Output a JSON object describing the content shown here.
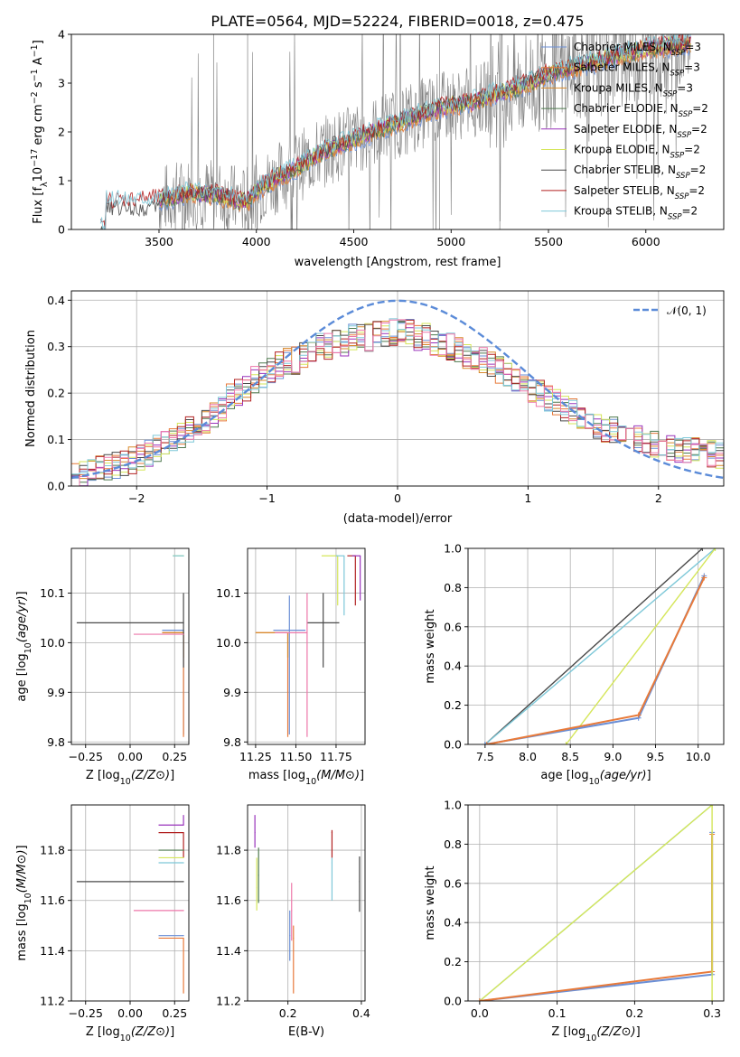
{
  "colors": {
    "Chabrier MILES": "#6b8fd6",
    "Salpeter MILES": "#e87a3a",
    "Kroupa MILES": "#d8892b",
    "Chabrier ELODIE": "#4f7a4f",
    "Salpeter ELODIE": "#9933bb",
    "Kroupa ELODIE": "#d5e65a",
    "Chabrier STELIB": "#4a4a4a",
    "Salpeter STELIB": "#b22222",
    "Kroupa STELIB": "#7ec8d8",
    "data": "#808080",
    "normal": "#5b8bd8",
    "pink": "#ee77aa"
  },
  "chart_data": [
    {
      "id": "spectrum",
      "type": "line",
      "title": "PLATE=0564, MJD=52224, FIBERID=0018, z=0.475",
      "xlabel": "wavelength [Angstrom, rest frame]",
      "ylabel": "Flux [f",
      "ylabel_parts": {
        "pre": "Flux [f",
        "sub1": "λ",
        "mid": "10",
        "sup1": "−17",
        "post": " erg cm",
        "sup2": "−2",
        "post2": " s",
        "sup3": "−1",
        "post3": " A",
        "sup4": "−1",
        "end": "]"
      },
      "xlim": [
        3050,
        6400
      ],
      "ylim": [
        0,
        4
      ],
      "xticks": [
        "3500",
        "4000",
        "4500",
        "5000",
        "5500",
        "6000"
      ],
      "xtick_values": [
        3500,
        4000,
        4500,
        5000,
        5500,
        6000
      ],
      "yticks": [
        "0",
        "1",
        "2",
        "3",
        "4"
      ],
      "ytick_values": [
        0,
        1,
        2,
        3,
        4
      ],
      "legend_position": "top-right",
      "legend": [
        {
          "name": "Chabrier MILES",
          "n": "3"
        },
        {
          "name": "Salpeter MILES",
          "n": "3"
        },
        {
          "name": "Kroupa MILES",
          "n": "3"
        },
        {
          "name": "Chabrier ELODIE",
          "n": "2"
        },
        {
          "name": "Salpeter ELODIE",
          "n": "2"
        },
        {
          "name": "Kroupa ELODIE",
          "n": "2"
        },
        {
          "name": "Chabrier STELIB",
          "n": "2"
        },
        {
          "name": "Salpeter STELIB",
          "n": "2"
        },
        {
          "name": "Kroupa STELIB",
          "n": "2"
        }
      ],
      "legend_sub": "SSP",
      "legend_prefix": ", N",
      "model_continuum": {
        "x": [
          3200,
          3230,
          3500,
          3650,
          3800,
          3950,
          4000,
          4100,
          4200,
          4300,
          4400,
          4500,
          4600,
          4700,
          4800,
          4900,
          5000,
          5100,
          5200,
          5300,
          5400,
          5500,
          5600,
          5700,
          5800,
          5900,
          6000,
          6100,
          6200,
          6250
        ],
        "y": [
          0.0,
          0.55,
          0.6,
          0.75,
          0.7,
          0.55,
          0.8,
          1.05,
          1.25,
          1.5,
          1.7,
          1.85,
          2.0,
          2.15,
          2.3,
          2.45,
          2.55,
          2.6,
          2.75,
          2.85,
          3.0,
          3.2,
          3.3,
          3.4,
          3.5,
          3.6,
          3.7,
          3.75,
          3.8,
          3.8
        ]
      }
    },
    {
      "id": "residuals",
      "type": "line",
      "xlabel": "(data-model)/error",
      "ylabel": "Normed distribution",
      "xlim": [
        -2.5,
        2.5
      ],
      "ylim": [
        0,
        0.42
      ],
      "xticks": [
        "−2",
        "−1",
        "0",
        "1",
        "2"
      ],
      "xtick_values": [
        -2,
        -1,
        0,
        1,
        2
      ],
      "yticks": [
        "0.0",
        "0.1",
        "0.2",
        "0.3",
        "0.4"
      ],
      "ytick_values": [
        0,
        0.1,
        0.2,
        0.3,
        0.4
      ],
      "legend": [
        {
          "name": "𝒩(0, 1)"
        }
      ],
      "legend_position": "top-right",
      "bin_width": 0.1,
      "hist_start": -2.5,
      "hist_mean": [
        0.02,
        0.025,
        0.03,
        0.035,
        0.04,
        0.045,
        0.05,
        0.055,
        0.06,
        0.07,
        0.08,
        0.09,
        0.1,
        0.11,
        0.12,
        0.13,
        0.14,
        0.15,
        0.17,
        0.19,
        0.2,
        0.21,
        0.23,
        0.24,
        0.25,
        0.26,
        0.27,
        0.27,
        0.28,
        0.29,
        0.3,
        0.3,
        0.31,
        0.31,
        0.32,
        0.32,
        0.32,
        0.33,
        0.33,
        0.33,
        0.33,
        0.33,
        0.32,
        0.32,
        0.31,
        0.3,
        0.3,
        0.29,
        0.28,
        0.27,
        0.27,
        0.26,
        0.25,
        0.24,
        0.23,
        0.22,
        0.21,
        0.2,
        0.19,
        0.18,
        0.17,
        0.16,
        0.15,
        0.14,
        0.13,
        0.12,
        0.12,
        0.11,
        0.11,
        0.1,
        0.1,
        0.09,
        0.09,
        0.085,
        0.08,
        0.08,
        0.075,
        0.07,
        0.07,
        0.065
      ]
    },
    {
      "id": "age-vs-Z",
      "type": "scatter",
      "xlabel": "Z [log10(Z/Z⊙)]",
      "ylabel": "age  [log10(age/yr)]",
      "xlim": [
        -0.33,
        0.33
      ],
      "ylim": [
        9.795,
        10.19
      ],
      "xticks": [
        "−0.25",
        "0.00",
        "0.25"
      ],
      "xtick_values": [
        -0.25,
        0,
        0.25
      ],
      "yticks": [
        "9.8",
        "9.9",
        "10.0",
        "10.1"
      ],
      "ytick_values": [
        9.8,
        9.9,
        10.0,
        10.1
      ],
      "points": [
        {
          "model": "Chabrier MILES",
          "x": 0.3,
          "y": 10.025,
          "xerr": [
            0.12,
            0
          ],
          "yerr": [
            0.21,
            0
          ]
        },
        {
          "model": "Salpeter MILES",
          "x": 0.3,
          "y": 10.02,
          "xerr": [
            0.12,
            0
          ],
          "yerr": [
            0.21,
            0
          ]
        },
        {
          "model": "Kroupa MILES",
          "x": 0.3,
          "y": 10.02,
          "xerr": [
            0.12,
            0
          ],
          "yerr": [
            0.05,
            0
          ]
        },
        {
          "model": "Chabrier STELIB",
          "x": 0.3,
          "y": 10.04,
          "xerr": [
            0.6,
            0
          ],
          "yerr": [
            0.09,
            0.06
          ]
        },
        {
          "model": "Kroupa ELODIE",
          "x": 0.3,
          "y": 10.175,
          "xerr": [
            0.06,
            0
          ],
          "yerr": [
            0,
            0
          ]
        },
        {
          "model": "Kroupa STELIB",
          "x": 0.3,
          "y": 10.175,
          "xerr": [
            0.06,
            0
          ],
          "yerr": [
            0,
            0
          ]
        },
        {
          "model": "pink",
          "x": 0.3,
          "y": 10.017,
          "xerr": [
            0.28,
            0
          ],
          "yerr": [
            0,
            0
          ]
        }
      ]
    },
    {
      "id": "age-vs-mass",
      "type": "scatter",
      "xlabel": "mass [log10(M/M⊙)]",
      "ylabel": "",
      "xlim": [
        11.2,
        11.93
      ],
      "ylim": [
        9.795,
        10.19
      ],
      "xticks": [
        "11.25",
        "11.50",
        "11.75"
      ],
      "xtick_values": [
        11.25,
        11.5,
        11.75
      ],
      "yticks": [
        "9.8",
        "9.9",
        "10.0",
        "10.1"
      ],
      "ytick_values": [
        9.8,
        9.9,
        10.0,
        10.1
      ],
      "points": [
        {
          "model": "Chabrier MILES",
          "x": 11.46,
          "y": 10.025,
          "xerr": [
            0.1,
            0.1
          ],
          "yerr": [
            0.21,
            0.07
          ]
        },
        {
          "model": "Salpeter MILES",
          "x": 11.45,
          "y": 10.02,
          "xerr": [
            0.2,
            0
          ],
          "yerr": [
            0.21,
            0
          ]
        },
        {
          "model": "Kroupa MILES",
          "x": 11.45,
          "y": 10.02,
          "xerr": [
            0.2,
            0
          ],
          "yerr": [
            0.05,
            0
          ]
        },
        {
          "model": "Chabrier STELIB",
          "x": 11.67,
          "y": 10.04,
          "xerr": [
            0.1,
            0.1
          ],
          "yerr": [
            0.09,
            0.06
          ]
        },
        {
          "model": "pink",
          "x": 11.57,
          "y": 10.02,
          "xerr": [
            0.2,
            0
          ],
          "yerr": [
            0.21,
            0.08
          ]
        },
        {
          "model": "Kroupa ELODIE",
          "x": 11.76,
          "y": 10.175,
          "xerr": [
            0.1,
            0
          ],
          "yerr": [
            0.1,
            0
          ]
        },
        {
          "model": "Salpeter STELIB",
          "x": 11.87,
          "y": 10.175,
          "xerr": [
            0.05,
            0
          ],
          "yerr": [
            0.1,
            0
          ]
        },
        {
          "model": "Salpeter ELODIE",
          "x": 11.9,
          "y": 10.175,
          "xerr": [
            0.05,
            0
          ],
          "yerr": [
            0.09,
            0
          ]
        },
        {
          "model": "Kroupa STELIB",
          "x": 11.8,
          "y": 10.175,
          "xerr": [
            0.05,
            0
          ],
          "yerr": [
            0.12,
            0
          ]
        }
      ]
    },
    {
      "id": "weight-vs-age",
      "type": "line",
      "xlabel": "age  [log10(age/yr)]",
      "ylabel": "mass weight",
      "xlim": [
        7.3,
        10.3
      ],
      "ylim": [
        0,
        1
      ],
      "xticks": [
        "7.5",
        "8.0",
        "8.5",
        "9.0",
        "9.5",
        "10.0"
      ],
      "xtick_values": [
        7.5,
        8.0,
        8.5,
        9.0,
        9.5,
        10.0
      ],
      "yticks": [
        "0.0",
        "0.2",
        "0.4",
        "0.6",
        "0.8",
        "1.0"
      ],
      "ytick_values": [
        0,
        0.2,
        0.4,
        0.6,
        0.8,
        1.0
      ],
      "series": [
        {
          "model": "Chabrier STELIB",
          "x": [
            7.5,
            10.05
          ],
          "y": [
            0,
            1.0
          ]
        },
        {
          "model": "Kroupa STELIB",
          "x": [
            7.5,
            10.2
          ],
          "y": [
            0,
            1.0
          ]
        },
        {
          "model": "Kroupa ELODIE",
          "x": [
            8.45,
            10.2
          ],
          "y": [
            0,
            1.0
          ]
        },
        {
          "model": "Chabrier MILES",
          "x": [
            7.5,
            9.3,
            10.07
          ],
          "y": [
            0,
            0.135,
            0.86
          ]
        },
        {
          "model": "Salpeter MILES",
          "x": [
            7.52,
            9.3,
            10.07
          ],
          "y": [
            0,
            0.15,
            0.85
          ]
        }
      ]
    },
    {
      "id": "mass-vs-Z",
      "type": "scatter",
      "xlabel": "Z [log10(Z/Z⊙)]",
      "ylabel": "mass [log10(M/M⊙)]",
      "xlim": [
        -0.33,
        0.33
      ],
      "ylim": [
        11.2,
        11.98
      ],
      "xticks": [
        "−0.25",
        "0.00",
        "0.25"
      ],
      "xtick_values": [
        -0.25,
        0,
        0.25
      ],
      "yticks": [
        "11.2",
        "11.4",
        "11.6",
        "11.8"
      ],
      "ytick_values": [
        11.2,
        11.4,
        11.6,
        11.8
      ],
      "points": [
        {
          "model": "Salpeter ELODIE",
          "x": 0.3,
          "y": 11.9,
          "xerr": [
            0.14,
            0
          ],
          "yerr": [
            0,
            0.04
          ]
        },
        {
          "model": "Salpeter STELIB",
          "x": 0.3,
          "y": 11.87,
          "xerr": [
            0.14,
            0
          ],
          "yerr": [
            0.1,
            0
          ]
        },
        {
          "model": "Chabrier ELODIE",
          "x": 0.3,
          "y": 11.8,
          "xerr": [
            0.14,
            0
          ],
          "yerr": [
            0,
            0
          ]
        },
        {
          "model": "Kroupa ELODIE",
          "x": 0.3,
          "y": 11.77,
          "xerr": [
            0.14,
            0
          ],
          "yerr": [
            0,
            0
          ]
        },
        {
          "model": "Kroupa STELIB",
          "x": 0.3,
          "y": 11.75,
          "xerr": [
            0.14,
            0
          ],
          "yerr": [
            0,
            0
          ]
        },
        {
          "model": "Chabrier STELIB",
          "x": 0.3,
          "y": 11.675,
          "xerr": [
            0.6,
            0
          ],
          "yerr": [
            0,
            0
          ]
        },
        {
          "model": "pink",
          "x": 0.3,
          "y": 11.56,
          "xerr": [
            0.28,
            0
          ],
          "yerr": [
            0,
            0
          ]
        },
        {
          "model": "Chabrier MILES",
          "x": 0.3,
          "y": 11.46,
          "xerr": [
            0.14,
            0
          ],
          "yerr": [
            0,
            0
          ]
        },
        {
          "model": "Salpeter MILES",
          "x": 0.3,
          "y": 11.45,
          "xerr": [
            0.14,
            0
          ],
          "yerr": [
            0.22,
            0
          ]
        }
      ]
    },
    {
      "id": "mass-vs-ebv",
      "type": "scatter",
      "xlabel": "E(B-V)",
      "ylabel": "",
      "xlim": [
        0.09,
        0.41
      ],
      "ylim": [
        11.2,
        11.98
      ],
      "xticks": [
        "0.2",
        "0.4"
      ],
      "xtick_values": [
        0.2,
        0.4
      ],
      "yticks": [
        "11.2",
        "11.4",
        "11.6",
        "11.8"
      ],
      "ytick_values": [
        11.2,
        11.4,
        11.6,
        11.8
      ],
      "points": [
        {
          "model": "Salpeter ELODIE",
          "x": 0.11,
          "y": 11.87,
          "yerr": [
            0.06,
            0.07
          ]
        },
        {
          "model": "Kroupa ELODIE",
          "x": 0.115,
          "y": 11.65,
          "yerr": [
            0.09,
            0.12
          ]
        },
        {
          "model": "Chabrier ELODIE",
          "x": 0.12,
          "y": 11.7,
          "yerr": [
            0.11,
            0.11
          ]
        },
        {
          "model": "Chabrier MILES",
          "x": 0.205,
          "y": 11.46,
          "yerr": [
            0.1,
            0.1
          ]
        },
        {
          "model": "pink",
          "x": 0.21,
          "y": 11.56,
          "yerr": [
            0.12,
            0.11
          ]
        },
        {
          "model": "Salpeter MILES",
          "x": 0.215,
          "y": 11.45,
          "yerr": [
            0.22,
            0.05
          ]
        },
        {
          "model": "Salpeter STELIB",
          "x": 0.32,
          "y": 11.87,
          "yerr": [
            0.1,
            0.01
          ]
        },
        {
          "model": "Kroupa STELIB",
          "x": 0.32,
          "y": 11.75,
          "yerr": [
            0.15,
            0.02
          ]
        },
        {
          "model": "Chabrier STELIB",
          "x": 0.395,
          "y": 11.675,
          "yerr": [
            0.12,
            0.1
          ]
        }
      ]
    },
    {
      "id": "weight-vs-Z",
      "type": "line",
      "xlabel": "Z [log10(Z/Z⊙)]",
      "ylabel": "mass weight",
      "xlim": [
        -0.015,
        0.315
      ],
      "ylim": [
        0,
        1
      ],
      "xticks": [
        "0.0",
        "0.1",
        "0.2",
        "0.3"
      ],
      "xtick_values": [
        0,
        0.1,
        0.2,
        0.3
      ],
      "yticks": [
        "0.0",
        "0.2",
        "0.4",
        "0.6",
        "0.8",
        "1.0"
      ],
      "ytick_values": [
        0,
        0.2,
        0.4,
        0.6,
        0.8,
        1.0
      ],
      "series": [
        {
          "model": "Kroupa STELIB",
          "x": [
            0,
            0.3
          ],
          "y": [
            0,
            1.0
          ]
        },
        {
          "model": "Kroupa ELODIE",
          "x": [
            0,
            0.3
          ],
          "y": [
            0,
            1.0
          ]
        },
        {
          "model": "Chabrier MILES",
          "x": [
            0,
            0.3,
            0.3
          ],
          "y": [
            0,
            0.135,
            0.86
          ]
        },
        {
          "model": "Salpeter MILES",
          "x": [
            0,
            0.3,
            0.3
          ],
          "y": [
            0,
            0.15,
            0.85
          ]
        },
        {
          "model": "Kroupa ELODIE",
          "x": [
            0.3,
            0.3
          ],
          "y": [
            0,
            1.0
          ]
        }
      ]
    }
  ]
}
